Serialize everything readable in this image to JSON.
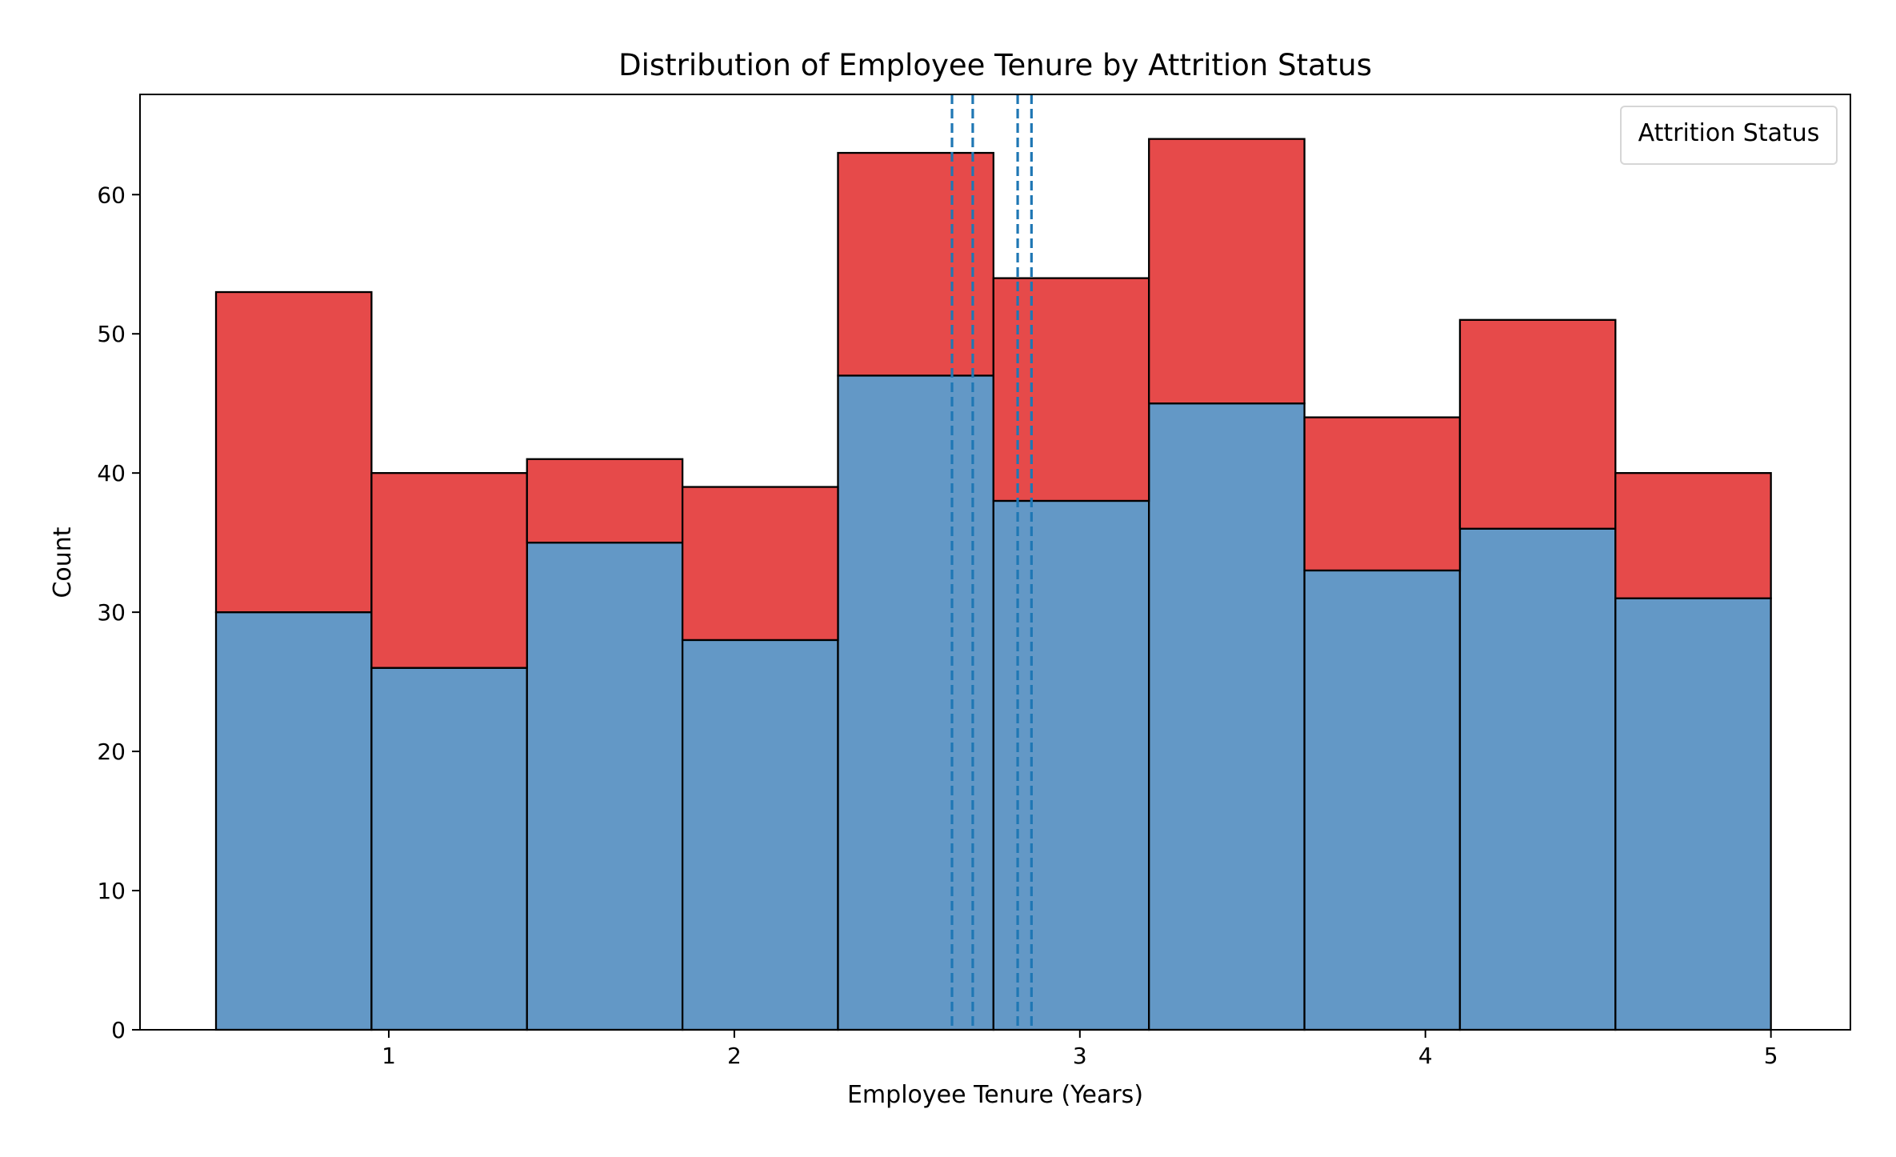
{
  "chart_data": {
    "type": "bar",
    "title": "Distribution of Employee Tenure by Attrition Status",
    "xlabel": "Employee Tenure (Years)",
    "ylabel": "Count",
    "xlim": [
      0.28,
      5.23
    ],
    "ylim": [
      0,
      67.2
    ],
    "xticks": [
      "1",
      "2",
      "3",
      "4",
      "5"
    ],
    "yticks": [
      "0",
      "10",
      "20",
      "30",
      "40",
      "50",
      "60"
    ],
    "stacked": true,
    "bins": [
      {
        "start": 0.5,
        "end": 0.95
      },
      {
        "start": 0.95,
        "end": 1.4
      },
      {
        "start": 1.4,
        "end": 1.85
      },
      {
        "start": 1.85,
        "end": 2.3
      },
      {
        "start": 2.3,
        "end": 2.75
      },
      {
        "start": 2.75,
        "end": 3.2
      },
      {
        "start": 3.2,
        "end": 3.65
      },
      {
        "start": 3.65,
        "end": 4.1
      },
      {
        "start": 4.1,
        "end": 4.55
      },
      {
        "start": 4.55,
        "end": 5.0
      }
    ],
    "series": [
      {
        "values": [
          30,
          26,
          35,
          28,
          47,
          38,
          45,
          33,
          36,
          31
        ],
        "color": "#6398c6"
      },
      {
        "values": [
          23,
          14,
          6,
          11,
          16,
          16,
          19,
          11,
          15,
          9
        ],
        "color": "#e64a4a"
      }
    ],
    "reference_lines": [
      {
        "x": 2.63,
        "color": "#1f77b4",
        "style": "dashed"
      },
      {
        "x": 2.69,
        "color": "#1f77b4",
        "style": "dashed"
      },
      {
        "x": 2.82,
        "color": "#1f77b4",
        "style": "dashed"
      },
      {
        "x": 2.86,
        "color": "#1f77b4",
        "style": "dashed"
      }
    ],
    "legend": {
      "title": "Attrition Status",
      "position": "top-right"
    },
    "grid": false
  }
}
